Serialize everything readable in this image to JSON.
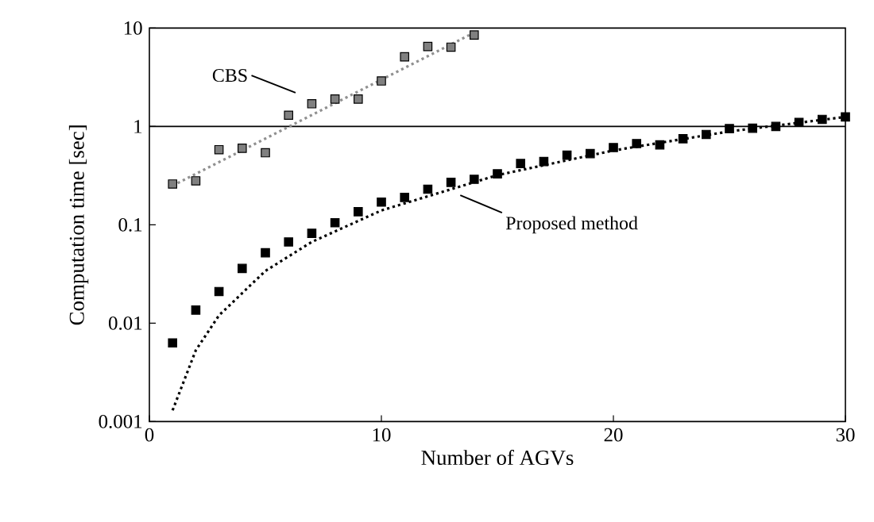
{
  "chart_data": {
    "type": "scatter",
    "xlabel": "Number of AGVs",
    "ylabel": "Computation time [sec]",
    "xlim": [
      0,
      30
    ],
    "xticks": [
      0,
      10,
      20,
      30
    ],
    "ylim": [
      0.001,
      10
    ],
    "yticks": [
      0.001,
      0.01,
      0.1,
      1,
      10
    ],
    "log": "y",
    "ref_lines": [
      {
        "axis": "y",
        "value": 1,
        "color": "#000000"
      }
    ],
    "series": [
      {
        "name": "CBS",
        "marker": "square",
        "color": "#808080",
        "x": [
          1,
          2,
          3,
          4,
          5,
          6,
          7,
          8,
          9,
          10,
          11,
          12,
          13,
          14
        ],
        "values": [
          0.26,
          0.28,
          0.58,
          0.6,
          0.54,
          1.3,
          1.7,
          1.9,
          1.9,
          2.9,
          5.1,
          6.5,
          6.4,
          8.5
        ]
      },
      {
        "type": "line",
        "line_style": "dotted",
        "color": "#909090",
        "x": [
          1,
          14
        ],
        "values": [
          0.25,
          9
        ]
      },
      {
        "name": "Proposed method",
        "marker": "square",
        "color": "#000000",
        "x": [
          1,
          2,
          3,
          4,
          5,
          6,
          7,
          8,
          9,
          10,
          11,
          12,
          13,
          14,
          15,
          16,
          17,
          18,
          19,
          20,
          21,
          22,
          23,
          24,
          25,
          26,
          27,
          28,
          29,
          30
        ],
        "values": [
          0.0063,
          0.0136,
          0.021,
          0.036,
          0.052,
          0.067,
          0.082,
          0.105,
          0.136,
          0.17,
          0.19,
          0.23,
          0.27,
          0.29,
          0.33,
          0.42,
          0.44,
          0.51,
          0.53,
          0.61,
          0.67,
          0.65,
          0.75,
          0.83,
          0.95,
          0.96,
          1.0,
          1.1,
          1.18,
          1.25
        ]
      },
      {
        "type": "line",
        "line_style": "dotted",
        "color": "#000000",
        "x": [
          1,
          2,
          3,
          5,
          7,
          10,
          15,
          20,
          25,
          30
        ],
        "values": [
          0.0013,
          0.0053,
          0.012,
          0.034,
          0.067,
          0.14,
          0.32,
          0.57,
          0.89,
          1.25
        ]
      }
    ]
  }
}
